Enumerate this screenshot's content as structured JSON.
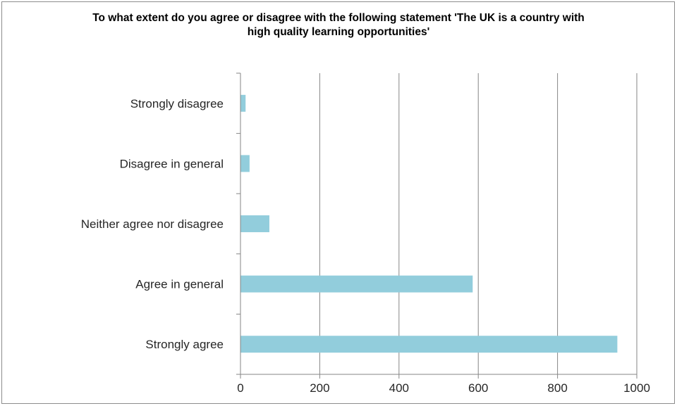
{
  "chart_data": {
    "type": "bar",
    "orientation": "horizontal",
    "title": "To what extent do you agree or disagree with the following statement 'The UK is a country with high quality learning opportunities'",
    "categories": [
      "Strongly disagree",
      "Disagree in general",
      "Neither agree nor disagree",
      "Agree in general",
      "Strongly agree"
    ],
    "values": [
      12,
      22,
      72,
      585,
      950
    ],
    "xlim": [
      0,
      1000
    ],
    "xticks": [
      0,
      200,
      400,
      600,
      800,
      1000
    ],
    "xtick_labels": [
      "0",
      "200",
      "400",
      "600",
      "800",
      "1000"
    ],
    "grid": "vertical",
    "legend": "none",
    "bar_color": "#92cddc",
    "grid_color": "#868686"
  }
}
